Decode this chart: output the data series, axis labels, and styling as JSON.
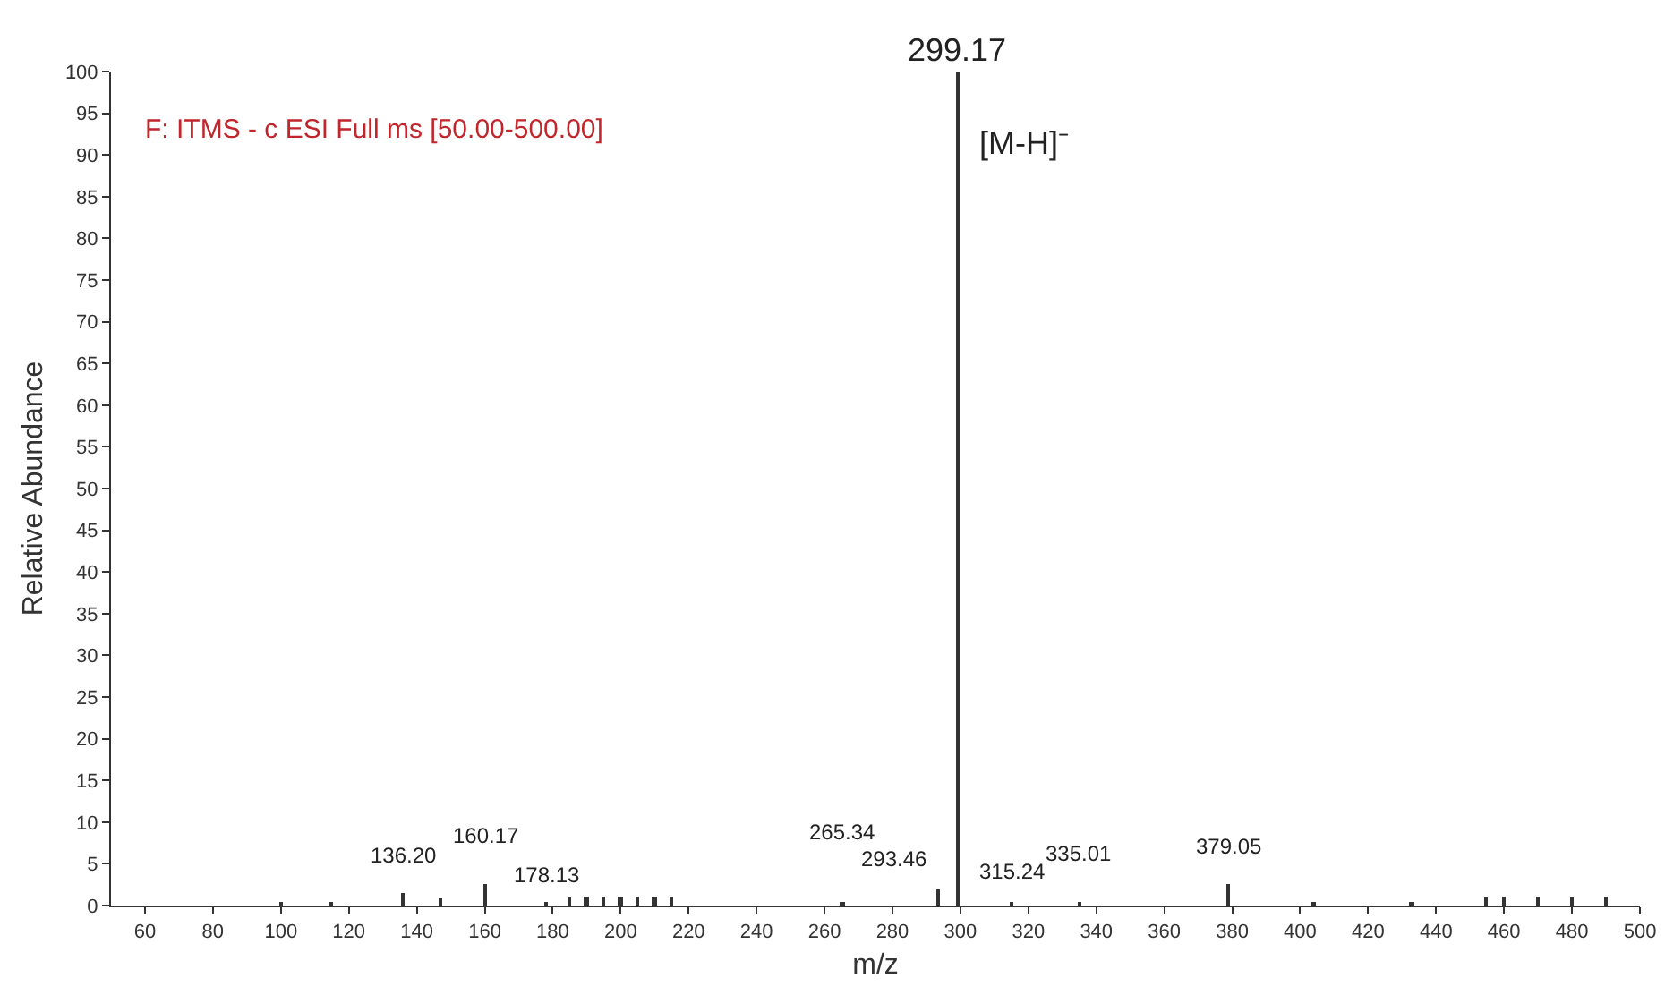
{
  "chart_data": {
    "type": "bar",
    "x": [
      100,
      115,
      136.2,
      147,
      160.17,
      178.13,
      185,
      190,
      195,
      200,
      205,
      210,
      215,
      265.34,
      293.46,
      299.17,
      315.24,
      335.01,
      379.05,
      404,
      433,
      455,
      460,
      470,
      480,
      490
    ],
    "values": [
      0.5,
      0.4,
      1.5,
      0.8,
      2.5,
      0.5,
      1,
      1,
      1,
      1,
      1,
      1,
      1,
      0.5,
      2,
      100,
      0.5,
      0.5,
      2.5,
      0.5,
      0.5,
      1,
      1,
      1,
      1,
      1
    ],
    "color": "#333333",
    "xlabel": "m/z",
    "ylabel": "Relative Abundance",
    "xlim": [
      50,
      500
    ],
    "xticks": [
      60,
      80,
      100,
      120,
      140,
      160,
      180,
      200,
      220,
      240,
      260,
      280,
      300,
      320,
      340,
      360,
      380,
      400,
      420,
      440,
      460,
      480,
      500
    ],
    "ylim": [
      0,
      100
    ],
    "yticks": [
      0,
      5,
      10,
      15,
      20,
      25,
      30,
      35,
      40,
      45,
      50,
      55,
      60,
      65,
      70,
      75,
      80,
      85,
      90,
      95,
      100
    ],
    "grid": false,
    "annotations": [
      "F: ITMS - c ESI Full ms [50.00-500.00]",
      "[M-H]⁻",
      {
        "text": "136.20",
        "x": 136.2,
        "y": 1.5
      },
      {
        "text": "160.17",
        "x": 160.17,
        "y": 2.5
      },
      {
        "text": "178.13",
        "x": 178.13,
        "y": 0.5
      },
      {
        "text": "265.34",
        "x": 265.34,
        "y": 0.5
      },
      {
        "text": "293.46",
        "x": 293.46,
        "y": 2
      },
      {
        "text": "299.17",
        "x": 299.17,
        "y": 100
      },
      {
        "text": "315.24",
        "x": 315.24,
        "y": 0.5
      },
      {
        "text": "335.01",
        "x": 335.01,
        "y": 0.5
      },
      {
        "text": "379.05",
        "x": 379.05,
        "y": 2.5
      }
    ]
  }
}
